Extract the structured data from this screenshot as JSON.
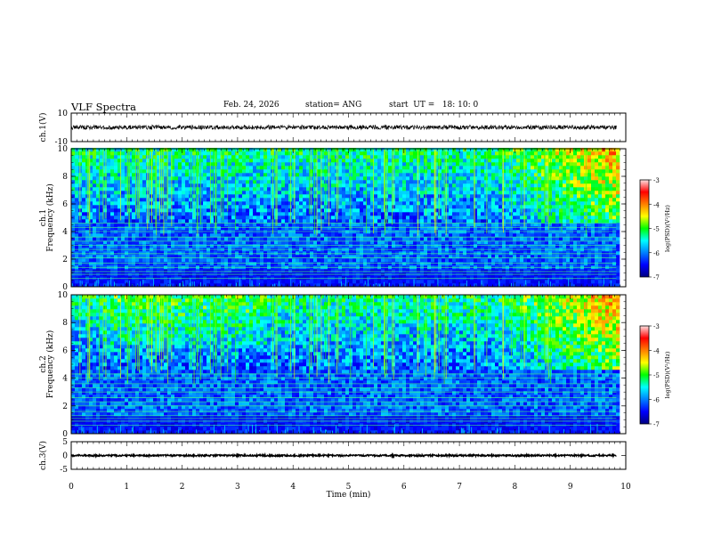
{
  "header": {
    "title": "VLF Spectra",
    "date": "Feb. 24, 2026",
    "station": "station= ANG",
    "start": "start  UT =   18: 10: 0"
  },
  "chart_data": {
    "type": "heatmap",
    "x": {
      "label": "Time  (min)",
      "range": [
        0,
        10
      ],
      "ticks": [
        "0",
        "1",
        "2",
        "3",
        "4",
        "5",
        "6",
        "7",
        "8",
        "9",
        "10"
      ],
      "data_end": 9.83
    },
    "panels": [
      {
        "id": "ch1-waveform",
        "type": "line",
        "ylabel": "ch.1(V)",
        "ylim": [
          -10,
          10
        ],
        "yticks": [
          "10",
          "-10"
        ],
        "level": 0,
        "noise_amplitude": 1.5
      },
      {
        "id": "ch1-spectrogram",
        "type": "heatmap",
        "ylabel_line1": "ch.1",
        "ylabel_line2": "Frequency  (kHz)",
        "ylim": [
          0,
          10
        ],
        "yticks": [
          "0",
          "2",
          "4",
          "6",
          "8",
          "10"
        ],
        "colorbar_label": "log(PSD)(V²/Hz)",
        "colorbar_range": [
          -7,
          -3
        ],
        "colorbar_ticks": [
          "-3",
          "-4",
          "-5",
          "-6",
          "-7"
        ],
        "line_frequencies_khz": [
          0.6,
          0.9,
          1.1,
          1.4,
          1.7,
          2.1,
          2.4,
          2.7,
          3.0,
          3.3,
          3.6,
          4.0,
          4.3,
          4.6
        ]
      },
      {
        "id": "ch2-spectrogram",
        "type": "heatmap",
        "ylabel_line1": "ch.2",
        "ylabel_line2": "Frequency  (kHz)",
        "ylim": [
          0,
          10
        ],
        "yticks": [
          "0",
          "2",
          "4",
          "6",
          "8",
          "10"
        ],
        "colorbar_label": "log(PSD)(V²/Hz)",
        "colorbar_range": [
          -7,
          -3
        ],
        "colorbar_ticks": [
          "-3",
          "-4",
          "-5",
          "-6",
          "-7"
        ],
        "line_frequencies_khz": [
          0.6,
          0.9,
          1.1,
          1.3,
          1.6,
          2.0,
          2.3,
          2.6,
          3.0,
          3.3,
          3.6,
          4.0,
          4.3
        ]
      },
      {
        "id": "ch3-waveform",
        "type": "line",
        "ylabel": "ch.3(V)",
        "ylim": [
          -5,
          5
        ],
        "yticks": [
          "5",
          "0",
          "-5"
        ],
        "level": 0,
        "noise_amplitude": 0.3
      }
    ],
    "colormap": [
      "#000080",
      "#0000ff",
      "#0080ff",
      "#00ffff",
      "#00ff00",
      "#ffff00",
      "#ff8000",
      "#ff0000",
      "#ffe0e0"
    ]
  }
}
